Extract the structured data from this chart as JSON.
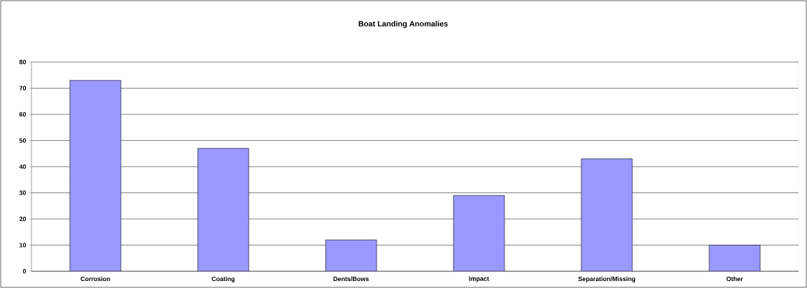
{
  "chart_data": {
    "type": "bar",
    "title": "Boat Landing Anomalies",
    "categories": [
      "Corrosion",
      "Coating",
      "Dents/Bows",
      "Impact",
      "Separation/Missing",
      "Other"
    ],
    "values": [
      73,
      47,
      12,
      29,
      43,
      10
    ],
    "color": "#9999ff",
    "ylim": [
      0,
      80
    ],
    "yticks": [
      0,
      10,
      20,
      30,
      40,
      50,
      60,
      70,
      80
    ],
    "grid": "y"
  }
}
